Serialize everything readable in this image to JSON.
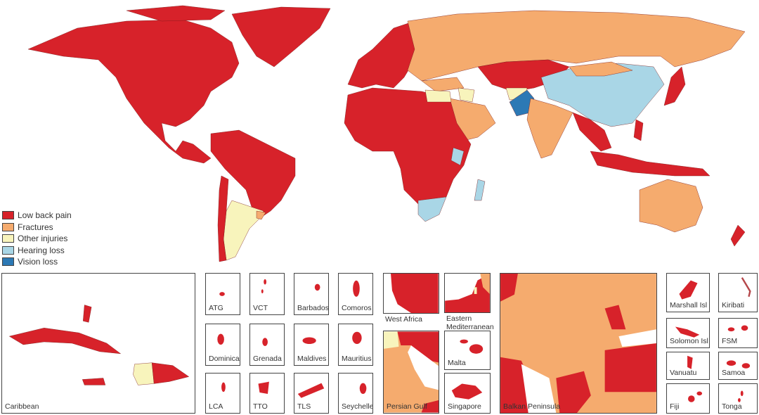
{
  "colors": {
    "low_back_pain": "#d7222a",
    "fractures": "#f5ab6e",
    "other_injuries": "#f8f4bc",
    "hearing_loss": "#a9d6e6",
    "vision_loss": "#2c79b5"
  },
  "legend": [
    {
      "label": "Low back pain",
      "color": "#d7222a"
    },
    {
      "label": "Fractures",
      "color": "#f5ab6e"
    },
    {
      "label": "Other injuries",
      "color": "#f8f4bc"
    },
    {
      "label": "Hearing loss",
      "color": "#a9d6e6"
    },
    {
      "label": "Vision loss",
      "color": "#2c79b5"
    }
  ],
  "insets": {
    "caribbean": "Caribbean",
    "atg": "ATG",
    "vct": "VCT",
    "barbados": "Barbados",
    "comoros": "Comoros",
    "dominica": "Dominica",
    "grenada": "Grenada",
    "maldives": "Maldives",
    "mauritius": "Mauritius",
    "lca": "LCA",
    "tto": "TTO",
    "tls": "TLS",
    "seychelles": "Seychelles",
    "west_africa": "West Africa",
    "eastern_med_1": "Eastern",
    "eastern_med_2": "Mediterranean",
    "persian_gulf": "Persian Gulf",
    "malta": "Malta",
    "singapore": "Singapore",
    "balkan": "Balkan Peninsula",
    "marshall": "Marshall Isl",
    "kiribati": "Kiribati",
    "solomon": "Solomon Isl",
    "fsm": "FSM",
    "vanuatu": "Vanuatu",
    "samoa": "Samoa",
    "fiji": "Fiji",
    "tonga": "Tonga"
  }
}
